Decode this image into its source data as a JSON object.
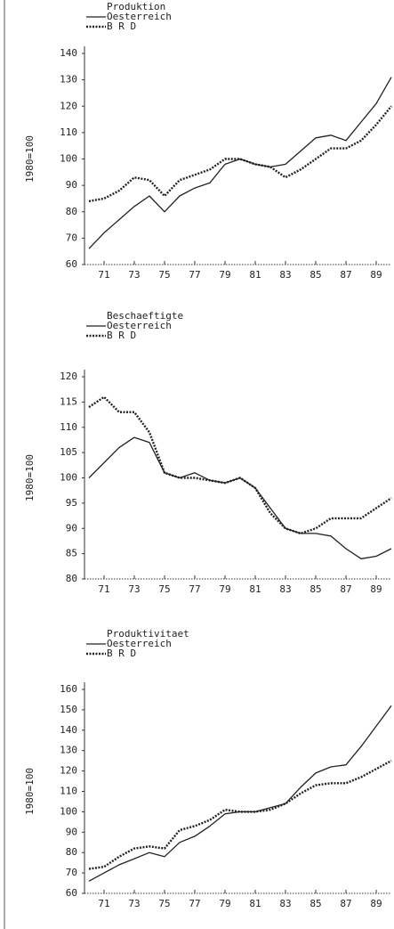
{
  "chart_data": [
    {
      "type": "line",
      "title": "Produktion",
      "y_label": "1980=100",
      "x": [
        70,
        71,
        72,
        73,
        74,
        75,
        76,
        77,
        78,
        79,
        80,
        81,
        82,
        83,
        84,
        85,
        86,
        87,
        88,
        89,
        90
      ],
      "xlim": [
        70,
        90
      ],
      "xticks": [
        71,
        73,
        75,
        77,
        79,
        81,
        83,
        85,
        87,
        89
      ],
      "ylim": [
        60,
        140
      ],
      "yticks": [
        60,
        70,
        80,
        90,
        100,
        110,
        120,
        130,
        140
      ],
      "series": [
        {
          "name": "Oesterreich",
          "color": "#222222",
          "style": "solid",
          "values": [
            66,
            72,
            77,
            82,
            86,
            80,
            86,
            89,
            91,
            98,
            100,
            98,
            97,
            98,
            103,
            108,
            109,
            107,
            114,
            121,
            131
          ]
        },
        {
          "name": "B R D",
          "color": "#222222",
          "style": "dotted",
          "values": [
            84,
            85,
            88,
            93,
            92,
            86,
            92,
            94,
            96,
            100,
            100,
            98,
            97,
            93,
            96,
            100,
            104,
            104,
            107,
            113,
            120
          ]
        }
      ]
    },
    {
      "type": "line",
      "title": "Beschaeftigte",
      "y_label": "1980=100",
      "x": [
        70,
        71,
        72,
        73,
        74,
        75,
        76,
        77,
        78,
        79,
        80,
        81,
        82,
        83,
        84,
        85,
        86,
        87,
        88,
        89,
        90
      ],
      "xlim": [
        70,
        90
      ],
      "xticks": [
        71,
        73,
        75,
        77,
        79,
        81,
        83,
        85,
        87,
        89
      ],
      "ylim": [
        80,
        120
      ],
      "yticks": [
        80,
        85,
        90,
        95,
        100,
        105,
        110,
        115,
        120
      ],
      "series": [
        {
          "name": "Oesterreich",
          "color": "#222222",
          "style": "solid",
          "values": [
            100,
            103,
            106,
            108,
            107,
            101,
            100,
            101,
            99.5,
            99,
            100,
            98,
            94,
            90,
            89,
            89,
            88.5,
            86,
            84,
            84.5,
            86
          ]
        },
        {
          "name": "B R D",
          "color": "#222222",
          "style": "dotted",
          "values": [
            114,
            116,
            113,
            113,
            109,
            101,
            100,
            100,
            99.5,
            99,
            100,
            98,
            93,
            90,
            89,
            90,
            92,
            92,
            92,
            94,
            96
          ]
        }
      ]
    },
    {
      "type": "line",
      "title": "Produktivitaet",
      "y_label": "1980=100",
      "x": [
        70,
        71,
        72,
        73,
        74,
        75,
        76,
        77,
        78,
        79,
        80,
        81,
        82,
        83,
        84,
        85,
        86,
        87,
        88,
        89,
        90
      ],
      "xlim": [
        70,
        90
      ],
      "xticks": [
        71,
        73,
        75,
        77,
        79,
        81,
        83,
        85,
        87,
        89
      ],
      "ylim": [
        60,
        160
      ],
      "yticks": [
        60,
        70,
        80,
        90,
        100,
        110,
        120,
        130,
        140,
        150,
        160
      ],
      "series": [
        {
          "name": "Oesterreich",
          "color": "#222222",
          "style": "solid",
          "values": [
            66,
            70,
            74,
            77,
            80,
            78,
            85,
            88,
            93,
            99,
            100,
            100,
            102,
            104,
            112,
            119,
            122,
            123,
            132,
            142,
            152
          ]
        },
        {
          "name": "B R D",
          "color": "#222222",
          "style": "dotted",
          "values": [
            72,
            73,
            78,
            82,
            83,
            82,
            91,
            93,
            96,
            101,
            100,
            100,
            101,
            104,
            109,
            113,
            114,
            114,
            117,
            121,
            125
          ]
        }
      ]
    }
  ]
}
